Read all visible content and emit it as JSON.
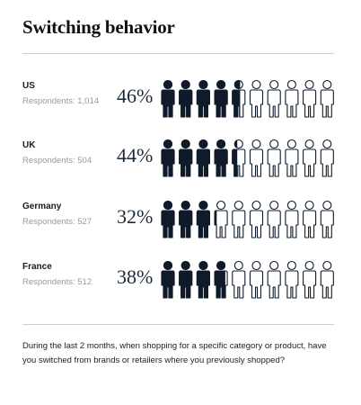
{
  "title": "Switching behavior",
  "chart_data": {
    "type": "pictogram",
    "total_icons": 10,
    "rows": [
      {
        "country": "US",
        "respondents_label": "Respondents: 1,014",
        "value": 46,
        "value_label": "46%"
      },
      {
        "country": "UK",
        "respondents_label": "Respondents: 504",
        "value": 44,
        "value_label": "44%"
      },
      {
        "country": "Germany",
        "respondents_label": "Respondents: 527",
        "value": 32,
        "value_label": "32%"
      },
      {
        "country": "France",
        "respondents_label": "Respondents: 512",
        "value": 38,
        "value_label": "38%"
      }
    ]
  },
  "caption": "During the last 2 months, when shopping for a specific category or product, have you switched from brands or retailers where you previously shopped?",
  "colors": {
    "filled": "#0f1b2b",
    "outline": "#0f1b2b",
    "empty": "#ffffff"
  }
}
